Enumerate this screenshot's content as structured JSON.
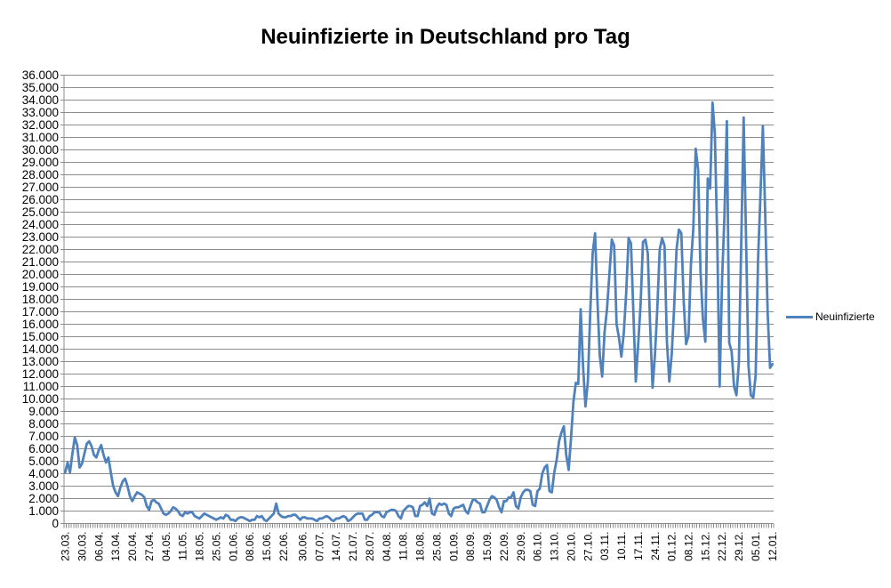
{
  "chart": {
    "title": "Neuinfizierte in Deutschland pro Tag",
    "legend": {
      "label": "Neuinfizierte"
    }
  },
  "chart_data": {
    "type": "line",
    "title": "Neuinfizierte in Deutschland pro Tag",
    "xlabel": "",
    "ylabel": "",
    "ylim": [
      0,
      36000
    ],
    "y_gridline_step": 1000,
    "grid_on": true,
    "legend_position": "right-middle",
    "line_color": "#4F81BD",
    "grid_color": "#8C8C8C",
    "axis_color": "#8C8C8C",
    "text_color": "#000000",
    "y_tick_labels": [
      "0",
      "1.000",
      "2.000",
      "3.000",
      "4.000",
      "5.000",
      "6.000",
      "7.000",
      "8.000",
      "9.000",
      "10.000",
      "11.000",
      "12.000",
      "13.000",
      "14.000",
      "15.000",
      "16.000",
      "17.000",
      "18.000",
      "19.000",
      "20.000",
      "21.000",
      "22.000",
      "23.000",
      "24.000",
      "25.000",
      "26.000",
      "27.000",
      "28.000",
      "29.000",
      "30.000",
      "31.000",
      "32.000",
      "33.000",
      "34.000",
      "35.000",
      "36.000"
    ],
    "x_tick_labels": [
      "23.03.",
      "30.03.",
      "06.04.",
      "13.04.",
      "20.04.",
      "27.04.",
      "04.05.",
      "11.05.",
      "18.05.",
      "25.05.",
      "01.06.",
      "08.06.",
      "15.06.",
      "22.06.",
      "30.06.",
      "07.07.",
      "14.07.",
      "21.07.",
      "28.07.",
      "04.08.",
      "11.08.",
      "18.08.",
      "25.08.",
      "01.09.",
      "08.09.",
      "15.09.",
      "22.09.",
      "29.09.",
      "06.10.",
      "13.10.",
      "20.10.",
      "27.10.",
      "03.11.",
      "10.11.",
      "17.11.",
      "24.11.",
      "01.12.",
      "08.12.",
      "15.12.",
      "22.12.",
      "29.12.",
      "05.01.",
      "12.01."
    ],
    "x_label_interval_days": 7,
    "series": [
      {
        "name": "Neuinfizierte",
        "color": "#4F81BD",
        "values": [
          4100,
          4900,
          4100,
          5600,
          6900,
          6300,
          4500,
          4800,
          5600,
          6400,
          6600,
          6200,
          5500,
          5300,
          5900,
          6300,
          5500,
          4900,
          5300,
          4100,
          3000,
          2500,
          2200,
          2900,
          3400,
          3600,
          3000,
          2200,
          1800,
          2200,
          2500,
          2400,
          2300,
          2100,
          1400,
          1100,
          1800,
          1900,
          1700,
          1600,
          1200,
          800,
          700,
          800,
          1000,
          1300,
          1200,
          1000,
          700,
          600,
          900,
          800,
          900,
          900,
          600,
          500,
          400,
          600,
          800,
          700,
          600,
          500,
          400,
          300,
          400,
          500,
          400,
          700,
          600,
          300,
          300,
          200,
          400,
          500,
          500,
          400,
          300,
          200,
          300,
          300,
          600,
          500,
          600,
          300,
          200,
          400,
          600,
          800,
          1600,
          800,
          600,
          500,
          500,
          600,
          600,
          700,
          700,
          500,
          300,
          500,
          500,
          400,
          400,
          400,
          300,
          200,
          400,
          400,
          500,
          600,
          500,
          300,
          200,
          400,
          400,
          500,
          600,
          500,
          200,
          300,
          500,
          700,
          800,
          800,
          800,
          300,
          300,
          600,
          700,
          900,
          900,
          900,
          600,
          500,
          900,
          1000,
          1100,
          1100,
          1000,
          600,
          400,
          1000,
          1200,
          1400,
          1400,
          1300,
          600,
          600,
          1400,
          1500,
          1700,
          1400,
          2000,
          800,
          700,
          1300,
          1600,
          1500,
          1600,
          1500,
          800,
          600,
          1200,
          1300,
          1300,
          1400,
          1500,
          1000,
          800,
          1400,
          1900,
          1900,
          1700,
          1600,
          900,
          900,
          1400,
          1900,
          2200,
          2100,
          1900,
          1300,
          900,
          1800,
          1800,
          2100,
          2100,
          2500,
          1400,
          1200,
          2100,
          2500,
          2700,
          2700,
          2600,
          1500,
          1400,
          2600,
          2800,
          4000,
          4500,
          4700,
          2600,
          2500,
          4100,
          5100,
          6600,
          7300,
          7800,
          5500,
          4300,
          6900,
          9800,
          11300,
          11200,
          17200,
          12600,
          9400,
          11400,
          17000,
          21700,
          23300,
          18000,
          13500,
          11800,
          15400,
          17200,
          20000,
          22800,
          22300,
          16000,
          14900,
          13400,
          15300,
          18500,
          22900,
          22500,
          16900,
          11400,
          14400,
          17600,
          22600,
          22800,
          21700,
          15700,
          10900,
          13600,
          17300,
          22000,
          22900,
          22300,
          14600,
          11400,
          13600,
          17300,
          22000,
          23600,
          23300,
          17800,
          14400,
          15100,
          20800,
          23700,
          30100,
          28400,
          20200,
          16400,
          14600,
          27700,
          26900,
          33800,
          31300,
          22800,
          11000,
          19500,
          24700,
          32300,
          14500,
          13800,
          11000,
          10300,
          12900,
          22500,
          32600,
          22900,
          12700,
          10300,
          10100,
          11900,
          21200,
          26400,
          31900,
          24700,
          16900,
          12500,
          12800
        ]
      }
    ]
  }
}
